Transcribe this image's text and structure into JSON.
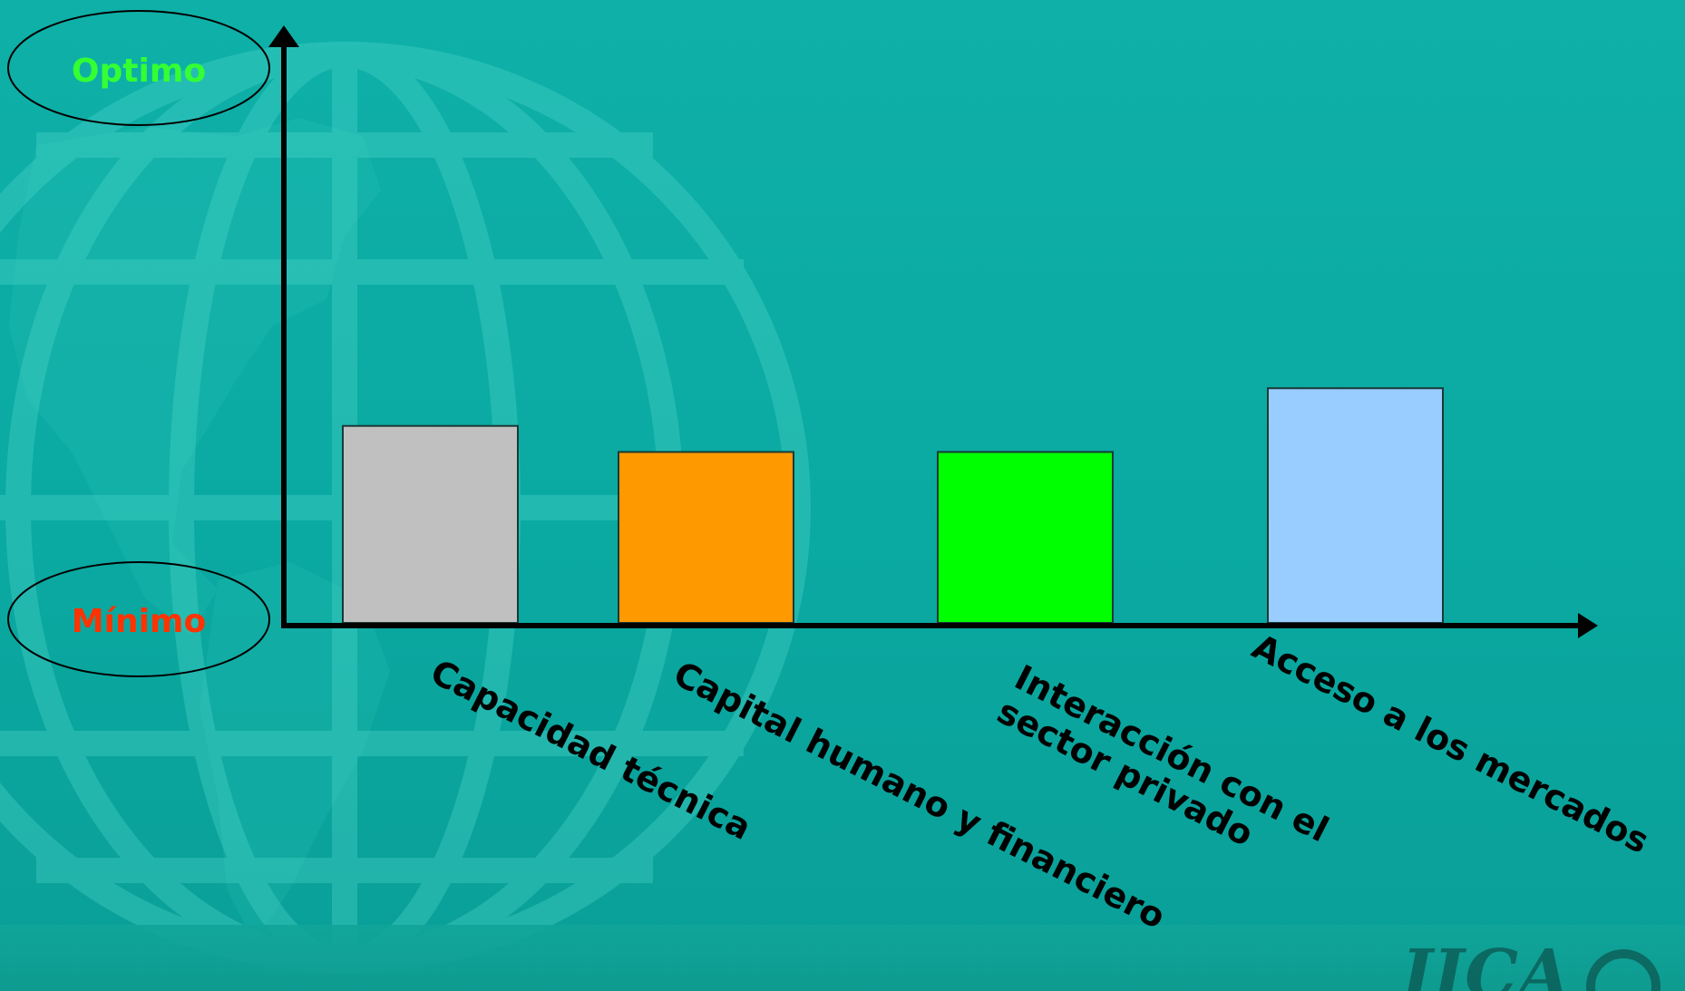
{
  "chart_data": {
    "type": "bar",
    "title": "",
    "xlabel": "",
    "ylabel": "",
    "y_top_label": "Optimo",
    "y_bottom_label": "Mínimo",
    "ylim": [
      0,
      100
    ],
    "categories": [
      [
        "Capacidad técnica"
      ],
      [
        "Capital humano y financiero"
      ],
      [
        "Interacción con el",
        "sector privado"
      ],
      [
        "Acceso a los mercados"
      ]
    ],
    "values": [
      34,
      29.5,
      29.5,
      40.5
    ],
    "colors": [
      "#c0c0c0",
      "#ff9900",
      "#00ff00",
      "#99ccff"
    ],
    "top_label_color": "#33ff33",
    "bottom_label_color": "#ff3300"
  },
  "logo": {
    "text": "IICA"
  }
}
